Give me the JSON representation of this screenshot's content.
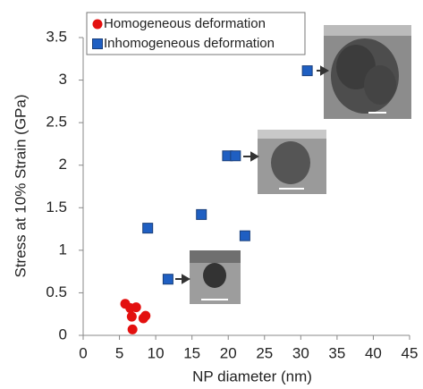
{
  "chart_data": {
    "type": "scatter",
    "xlabel": "NP diameter (nm)",
    "ylabel": "Stress at 10% Strain (GPa)",
    "xlim": [
      0,
      45
    ],
    "xticks": [
      0,
      5,
      10,
      15,
      20,
      25,
      30,
      35,
      40,
      45
    ],
    "ylim": [
      0,
      3.5
    ],
    "yticks": [
      0,
      0.5,
      1,
      1.5,
      2,
      2.5,
      3,
      3.5
    ],
    "legend": "upper left",
    "series": [
      {
        "name": "Homogeneous deformation",
        "color": "#e3100f",
        "marker": "circle",
        "x": [
          5.8,
          6.5,
          7.3,
          6.7,
          8.3,
          8.6,
          6.8
        ],
        "y": [
          0.37,
          0.32,
          0.33,
          0.22,
          0.2,
          0.23,
          0.07
        ]
      },
      {
        "name": "Inhomogeneous deformation",
        "color": "#1f5fc2",
        "marker": "square",
        "x": [
          8.9,
          11.7,
          16.3,
          19.9,
          21.0,
          22.3,
          30.9
        ],
        "y": [
          1.26,
          0.66,
          1.42,
          2.11,
          2.11,
          1.17,
          3.11
        ]
      }
    ]
  }
}
